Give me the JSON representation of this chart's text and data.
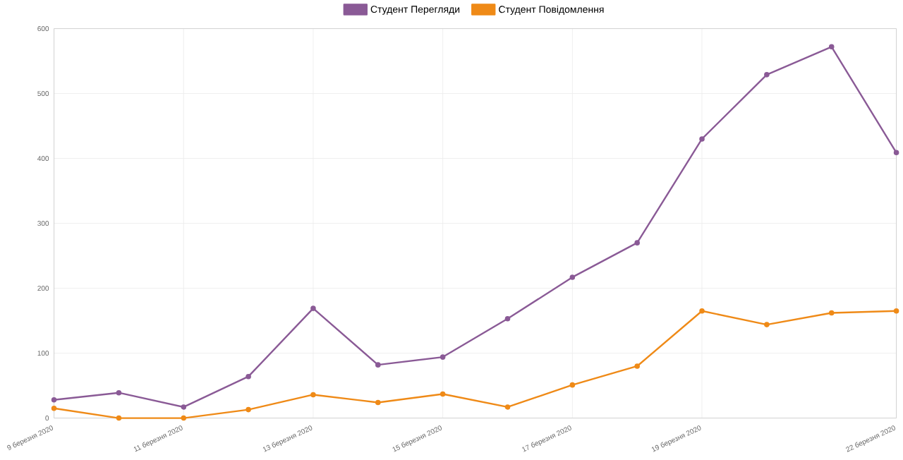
{
  "chart_data": {
    "type": "line",
    "categories": [
      "9 березня 2020",
      null,
      "11 березня 2020",
      null,
      "13 березня 2020",
      null,
      "15 березня 2020",
      null,
      "17 березня 2020",
      null,
      "19 березня 2020",
      null,
      null,
      "22 березня 2020"
    ],
    "series": [
      {
        "name": "Студент Перегляди",
        "color": "#8a5a96",
        "values": [
          28,
          39,
          17,
          64,
          169,
          82,
          94,
          153,
          217,
          270,
          430,
          529,
          572,
          409
        ]
      },
      {
        "name": "Студент Повідомлення",
        "color": "#ef8a17",
        "values": [
          15,
          0,
          0,
          13,
          36,
          24,
          37,
          17,
          51,
          80,
          165,
          144,
          162,
          165
        ]
      }
    ],
    "ylim": [
      0,
      600
    ],
    "yticks": [
      0,
      100,
      200,
      300,
      400,
      500,
      600
    ],
    "grid": true,
    "legend": "top",
    "marker": "circle",
    "line_style": "solid"
  }
}
